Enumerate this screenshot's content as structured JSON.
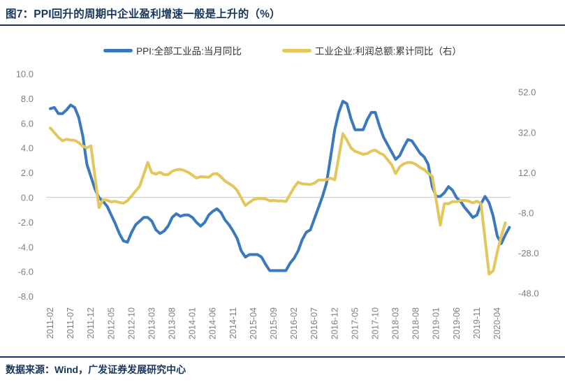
{
  "page": {
    "title": "图7：PPI回升的周期中企业盈利增速一般是上升的（%）",
    "source": "数据来源：Wind，广发证券发展研究中心"
  },
  "colors": {
    "navy": "#17365D",
    "ppi_blue": "#3A79BD",
    "profit_yellow": "#E3C65C",
    "axis_gray": "#7F7F7F",
    "zero_line_gray": "#CFCFCF"
  },
  "legend": {
    "items": [
      {
        "label": "PPI:全部工业品:当月同比",
        "color": "#3A79BD"
      },
      {
        "label": "工业企业:利润总额:累计同比（右）",
        "color": "#E3C65C"
      }
    ]
  },
  "chart_data": {
    "type": "line",
    "title": "图7：PPI回升的周期中企业盈利增速一般是上升的（%）",
    "x_start": "2011-02",
    "x_frequency": "monthly",
    "x_tick_every_n_months": 5,
    "x_tick_labels": [
      "2011-02",
      "2011-07",
      "2011-12",
      "2012-05",
      "2012-10",
      "2013-03",
      "2013-08",
      "2014-01",
      "2014-06",
      "2014-11",
      "2015-04",
      "2015-09",
      "2016-02",
      "2016-07",
      "2016-12",
      "2017-05",
      "2017-10",
      "2018-03",
      "2018-08",
      "2019-01",
      "2019-06",
      "2019-11",
      "2020-04"
    ],
    "left_axis": {
      "tick_labels": [
        "10.0",
        "8.0",
        "6.0",
        "4.0",
        "2.0",
        "0.0",
        "-2.0",
        "-4.0",
        "-6.0",
        "-8.0"
      ],
      "min": -8,
      "max": 10
    },
    "right_axis": {
      "tick_labels": [
        "52.0",
        "32.0",
        "12.0",
        "-8.0",
        "-28.0",
        "-48.0"
      ],
      "min": -48,
      "max": 52
    },
    "grid": "zero-line-only",
    "legend_position": "top",
    "series": [
      {
        "name": "PPI:全部工业品:当月同比",
        "axis": "left",
        "color": "#3A79BD",
        "values": [
          7.2,
          7.3,
          6.8,
          6.8,
          7.1,
          7.5,
          7.3,
          6.5,
          5.0,
          2.7,
          1.7,
          0.7,
          0.0,
          -0.3,
          -0.7,
          -1.4,
          -2.1,
          -2.9,
          -3.5,
          -3.6,
          -2.8,
          -2.2,
          -1.9,
          -1.6,
          -1.6,
          -1.9,
          -2.6,
          -2.9,
          -2.7,
          -2.3,
          -1.6,
          -1.3,
          -1.5,
          -1.4,
          -1.4,
          -1.6,
          -2.0,
          -2.3,
          -2.0,
          -1.4,
          -1.1,
          -0.9,
          -1.2,
          -1.8,
          -2.2,
          -2.7,
          -3.3,
          -4.3,
          -4.8,
          -4.6,
          -4.6,
          -4.6,
          -4.8,
          -5.4,
          -5.9,
          -5.9,
          -5.9,
          -5.9,
          -5.9,
          -5.3,
          -4.9,
          -4.3,
          -3.4,
          -2.8,
          -2.6,
          -1.7,
          -0.8,
          0.1,
          1.2,
          3.3,
          5.5,
          6.9,
          7.8,
          7.6,
          6.4,
          5.5,
          5.5,
          5.5,
          6.3,
          6.9,
          6.9,
          5.8,
          4.9,
          4.3,
          3.7,
          3.1,
          3.4,
          4.1,
          4.7,
          4.6,
          4.1,
          3.6,
          3.3,
          2.7,
          0.9,
          0.1,
          0.1,
          0.4,
          0.9,
          0.6,
          0.0,
          -0.3,
          -0.8,
          -1.2,
          -1.6,
          -1.4,
          -0.5,
          0.1,
          -0.4,
          -1.5,
          -3.1,
          -3.7,
          -3.0,
          -2.4
        ]
      },
      {
        "name": "工业企业:利润总额:累计同比（右）",
        "axis": "right",
        "color": "#E3C65C",
        "values": [
          34.3,
          32.0,
          29.7,
          27.9,
          28.7,
          28.3,
          28.2,
          27.0,
          25.3,
          24.4,
          25.4,
          null,
          -5.2,
          -1.3,
          -1.6,
          -2.4,
          -2.2,
          -2.7,
          -3.1,
          -1.8,
          0.5,
          3.0,
          5.3,
          null,
          17.2,
          12.1,
          11.4,
          12.3,
          11.1,
          11.1,
          12.8,
          13.5,
          13.7,
          13.2,
          12.2,
          null,
          9.4,
          10.1,
          10.0,
          9.8,
          11.4,
          11.7,
          10.0,
          7.9,
          6.7,
          5.3,
          3.3,
          null,
          -4.2,
          -2.7,
          -1.3,
          -0.8,
          -0.7,
          -1.0,
          -1.9,
          -1.7,
          -2.0,
          -1.9,
          -2.3,
          null,
          4.8,
          7.4,
          6.5,
          6.4,
          6.2,
          6.9,
          8.4,
          8.4,
          8.6,
          9.4,
          8.5,
          null,
          31.5,
          28.3,
          24.4,
          22.7,
          22.0,
          21.2,
          21.6,
          22.8,
          23.3,
          21.9,
          21.0,
          null,
          16.1,
          11.6,
          15.0,
          16.5,
          17.2,
          17.1,
          16.2,
          14.7,
          13.6,
          11.8,
          10.3,
          null,
          -14.0,
          -3.3,
          -3.4,
          -2.3,
          -2.4,
          -1.7,
          -1.7,
          -2.1,
          -2.9,
          -2.1,
          -3.3,
          null,
          -38.3,
          -36.7,
          -27.4,
          -19.3,
          -12.8
        ]
      }
    ]
  }
}
